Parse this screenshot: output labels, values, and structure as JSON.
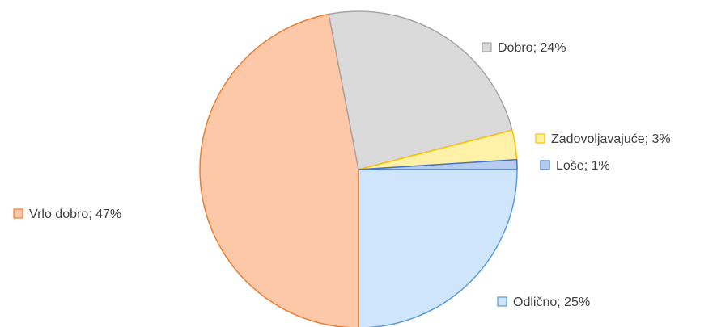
{
  "chart_data": {
    "type": "pie",
    "values": [
      25,
      47,
      24,
      3,
      1
    ],
    "value_labels": [
      "Odlično; 25%",
      "Vrlo dobro; 47%",
      "Dobro; 24%",
      "Zadovoljavajuće; 3%",
      "Loše; 1%"
    ],
    "colors": [
      "#cfe5fb",
      "#fcc8a8",
      "#dadada",
      "#fff2a8",
      "#b7cbee"
    ],
    "stroke_colors": [
      "#5b9bd5",
      "#ed7d31",
      "#a5a5a5",
      "#ffc000",
      "#4472c4"
    ]
  }
}
